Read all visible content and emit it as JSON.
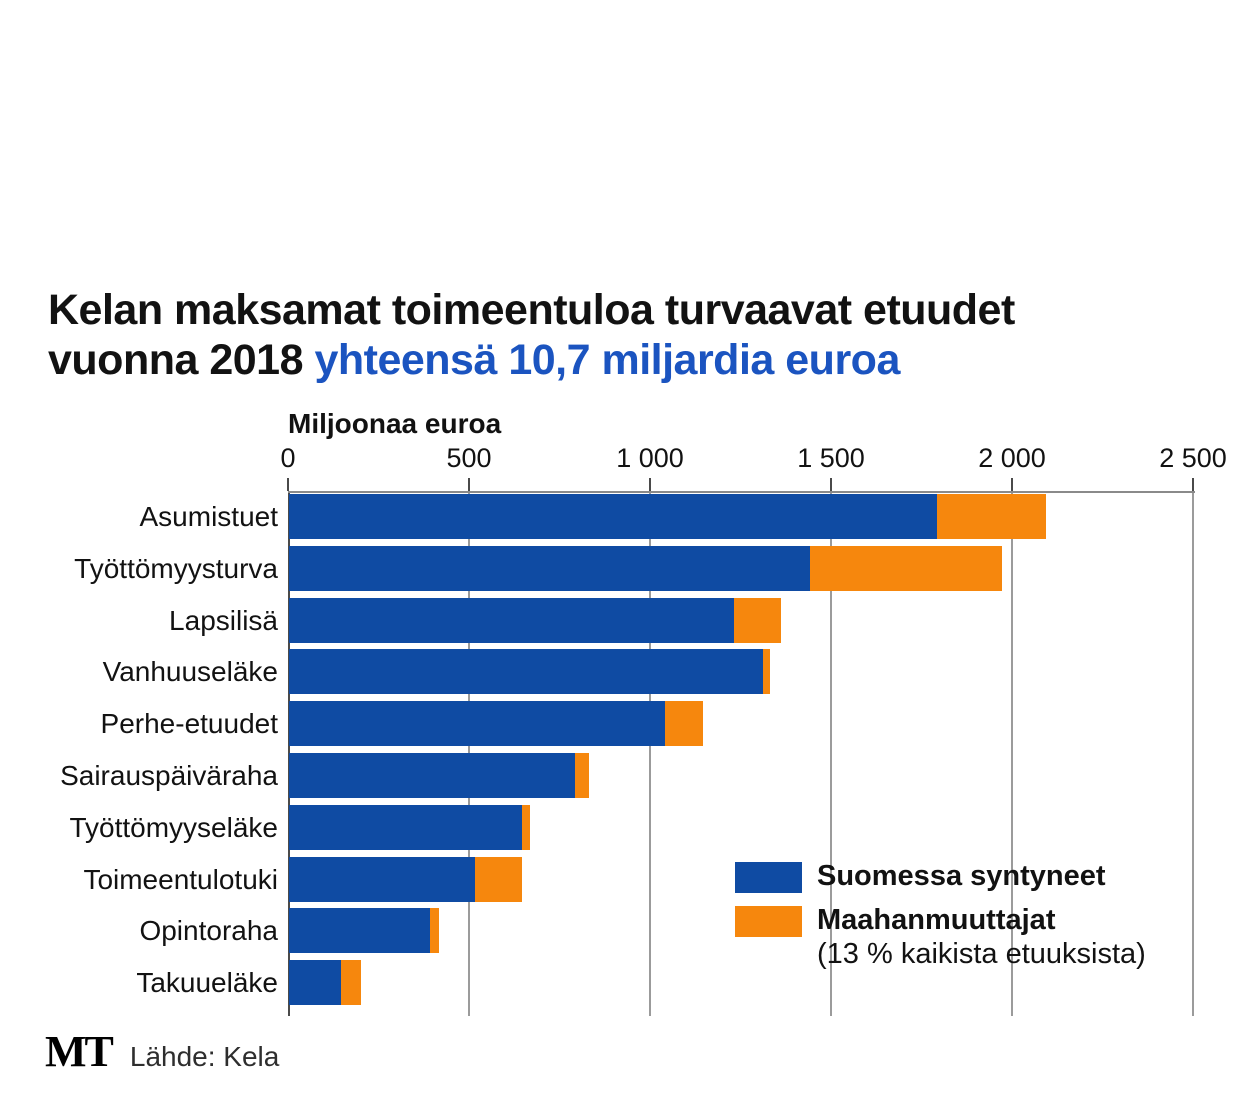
{
  "title": {
    "line1": "Kelan maksamat toimeentuloa turvaavat etuudet",
    "line2_black": "vuonna 2018 ",
    "line2_blue": "yhteensä 10,7 miljardia euroa"
  },
  "chart_data": {
    "type": "bar",
    "orientation": "horizontal",
    "stacked": true,
    "unit_label": "Miljoonaa euroa",
    "xlim": [
      0,
      2500
    ],
    "x_tick_values": [
      0,
      500,
      1000,
      1500,
      2000,
      2500
    ],
    "x_tick_labels": [
      "0",
      "500",
      "1 000",
      "1 500",
      "2 000",
      "2 500"
    ],
    "grid": true,
    "categories": [
      "Asumistuet",
      "Työttömyysturva",
      "Lapsilisä",
      "Vanhuuseläke",
      "Perhe-etuudet",
      "Sairauspäiväraha",
      "Työttömyyseläke",
      "Toimeentulotuki",
      "Opintoraha",
      "Takuueläke"
    ],
    "series": [
      {
        "name": "Suomessa syntyneet",
        "color": "#0f4ba3",
        "values": [
          1790,
          1440,
          1230,
          1310,
          1040,
          790,
          645,
          515,
          390,
          145
        ]
      },
      {
        "name": "Maahanmuuttajat",
        "color": "#f6870d",
        "values": [
          300,
          530,
          130,
          20,
          105,
          40,
          20,
          130,
          25,
          55
        ]
      }
    ],
    "legend_position": "inside-lower-right",
    "legend": [
      {
        "label": "Suomessa syntyneet",
        "sublabel": ""
      },
      {
        "label": "Maahanmuuttajat",
        "sublabel": "(13 % kaikista etuuksista)"
      }
    ]
  },
  "footer": {
    "logo": "MT",
    "source": "Lähde: Kela"
  },
  "colors": {
    "bar_blue": "#0f4ba3",
    "bar_orange": "#f6870d",
    "title_blue": "#1b54c0",
    "grid": "#9b9b9b",
    "axis": "#4a4a4a"
  }
}
